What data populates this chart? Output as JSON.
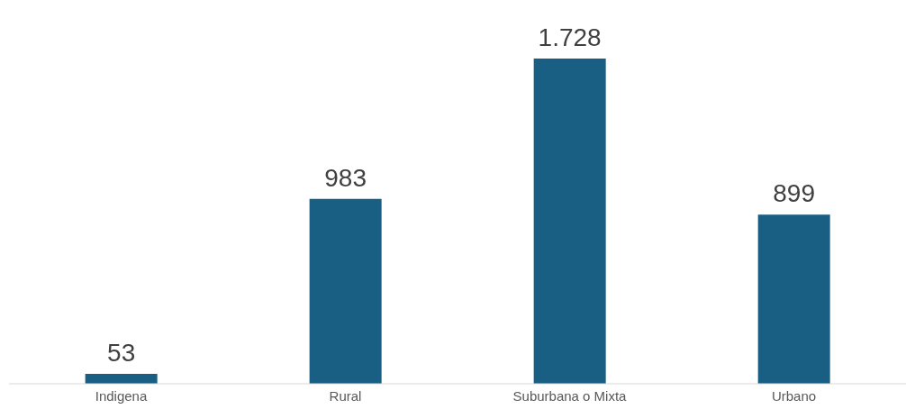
{
  "chart_data": {
    "type": "bar",
    "categories": [
      "Indigena",
      "Rural",
      "Suburbana o Mixta",
      "Urbano"
    ],
    "values": [
      53,
      983,
      1728,
      899
    ],
    "value_labels": [
      "53",
      "983",
      "1.728",
      "899"
    ],
    "color": "#195e83"
  }
}
